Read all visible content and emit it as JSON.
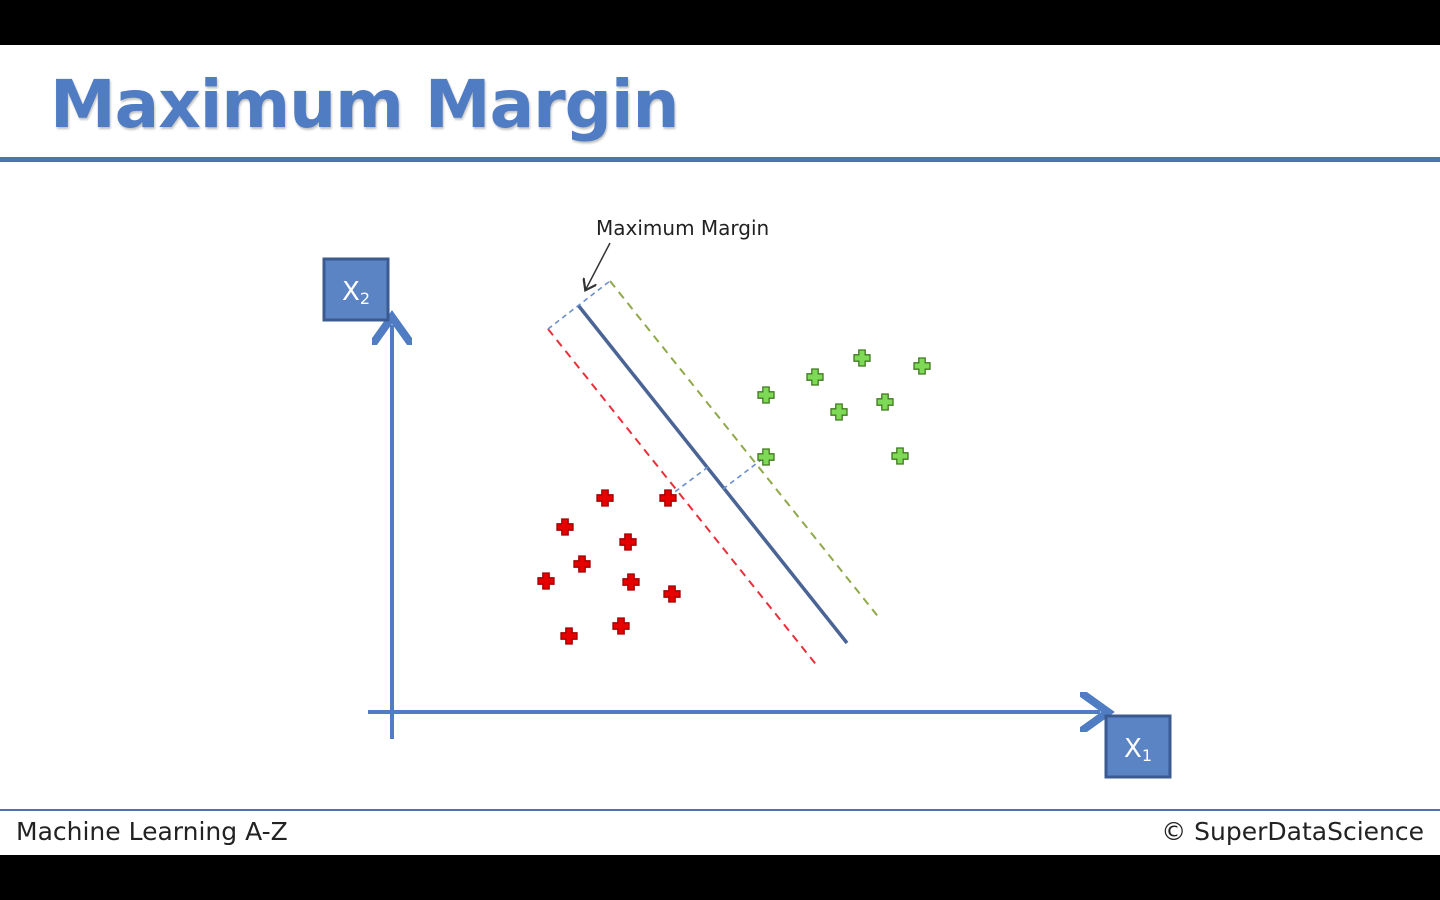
{
  "slide": {
    "title": "Maximum Margin",
    "footer_left": "Machine Learning A-Z",
    "footer_right": "© SuperDataScience"
  },
  "diagram": {
    "annotation": "Maximum Margin",
    "x_axis_label": "X",
    "x_axis_subscript": "1",
    "y_axis_label": "X",
    "y_axis_subscript": "2",
    "colors": {
      "axis": "#4f7cc2",
      "hyperplane": "#4a6496",
      "negative_margin": "#e8303a",
      "positive_margin": "#8fa84a",
      "margin_connector": "#6a8fd0",
      "negative_class": "#e60000",
      "positive_class": "#7ed957"
    },
    "classes": [
      "negative",
      "positive"
    ]
  }
}
